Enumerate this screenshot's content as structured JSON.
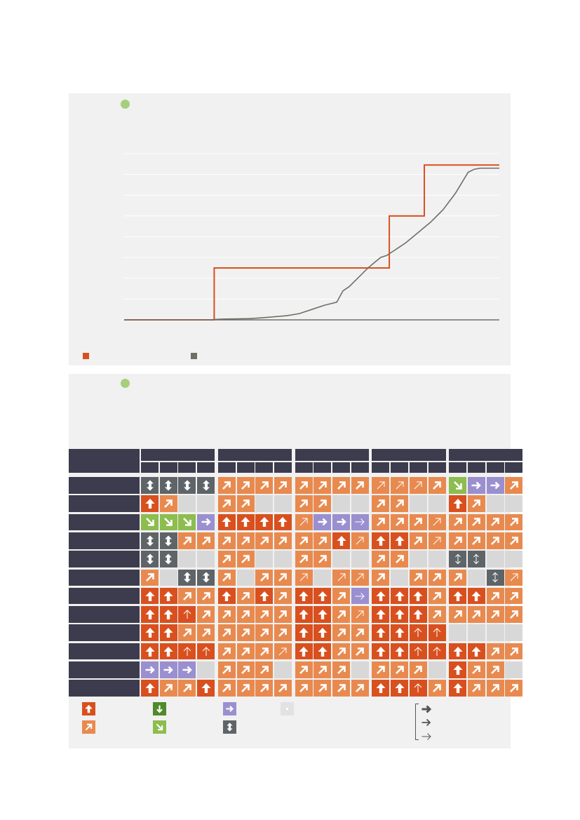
{
  "chart_data": {
    "type": "line",
    "title": "",
    "xlabel": "",
    "ylabel": "",
    "x": [
      0,
      10,
      20,
      30,
      40,
      50,
      60,
      70,
      72,
      80,
      90,
      100,
      110,
      120,
      130,
      140,
      150,
      160,
      170,
      175,
      180,
      185,
      190,
      195,
      200,
      205,
      210,
      215,
      220,
      225,
      230,
      235,
      240,
      245,
      250,
      255,
      260,
      265,
      270,
      275,
      280,
      285,
      290,
      295,
      300
    ],
    "xlim": [
      0,
      300
    ],
    "ylim": [
      0,
      8
    ],
    "gridlines_y": [
      0,
      1,
      2,
      3,
      4,
      5,
      6,
      7,
      8
    ],
    "grid": true,
    "series": [
      {
        "name": "",
        "color": "#d9501f",
        "steps": [
          {
            "x": 0,
            "y": 0
          },
          {
            "x": 72,
            "y": 0
          },
          {
            "x": 72,
            "y": 2.5
          },
          {
            "x": 212,
            "y": 2.5
          },
          {
            "x": 212,
            "y": 5
          },
          {
            "x": 240,
            "y": 5
          },
          {
            "x": 240,
            "y": 7.45
          },
          {
            "x": 300,
            "y": 7.45
          }
        ]
      },
      {
        "name": "",
        "color": "#6f6f68",
        "values": [
          0,
          0,
          0,
          0,
          0,
          0,
          0,
          0,
          0.02,
          0.04,
          0.05,
          0.06,
          0.1,
          0.15,
          0.2,
          0.3,
          0.5,
          0.7,
          0.85,
          1.4,
          1.6,
          1.9,
          2.2,
          2.5,
          2.75,
          3.0,
          3.1,
          3.3,
          3.5,
          3.7,
          3.95,
          4.2,
          4.45,
          4.7,
          5.0,
          5.3,
          5.7,
          6.1,
          6.6,
          7.1,
          7.25,
          7.3,
          7.3,
          7.3,
          7.3
        ]
      }
    ]
  },
  "trend_table": {
    "groups": [
      "",
      "",
      "",
      "",
      ""
    ],
    "quarters_per_group": 4,
    "rows": [
      {
        "label": "",
        "cells": [
          "vu_gray",
          "vu_gray",
          "vu_gray",
          "vu_gray",
          "ne",
          "ne",
          "ne",
          "ne",
          "ne",
          "ne",
          "ne",
          "ne",
          "ne_thin",
          "ne_thin",
          "ne_thin",
          "ne",
          "se_green",
          "e_purple",
          "e_purple",
          "ne"
        ]
      },
      {
        "label": "",
        "cells": [
          "up",
          "ne",
          "blank",
          "blank",
          "ne",
          "ne",
          "blank",
          "blank",
          "ne",
          "ne",
          "blank",
          "blank",
          "ne",
          "ne",
          "blank",
          "blank",
          "up",
          "ne",
          "blank",
          "blank"
        ]
      },
      {
        "label": "",
        "cells": [
          "se_green",
          "se_green",
          "se_green",
          "e_purple",
          "up",
          "up",
          "up",
          "up",
          "ne_thin",
          "e_purple",
          "e_purple",
          "e_purple_thin",
          "ne",
          "ne",
          "ne",
          "ne_thin",
          "ne",
          "ne",
          "ne",
          "ne"
        ]
      },
      {
        "label": "",
        "cells": [
          "vu_gray",
          "vu_gray",
          "ne",
          "ne",
          "ne",
          "ne",
          "ne",
          "ne",
          "ne",
          "ne",
          "up",
          "ne_thin",
          "up",
          "up",
          "ne",
          "ne_thin",
          "ne",
          "ne",
          "ne",
          "ne"
        ]
      },
      {
        "label": "",
        "cells": [
          "vu_gray",
          "vu_gray",
          "blank",
          "blank",
          "ne",
          "ne",
          "blank",
          "blank",
          "ne",
          "ne",
          "blank",
          "blank",
          "ne",
          "ne",
          "blank",
          "blank",
          "vu_gray_thin",
          "vu_gray_thin",
          "blank",
          "blank"
        ]
      },
      {
        "label": "",
        "cells": [
          "ne",
          "blank",
          "vu_gray",
          "vu_gray",
          "ne",
          "blank",
          "ne",
          "ne",
          "ne_thin",
          "blank",
          "ne_thin",
          "ne_thin",
          "ne",
          "blank",
          "ne",
          "ne",
          "ne",
          "blank",
          "vu_gray_thin",
          "ne_thin"
        ]
      },
      {
        "label": "",
        "cells": [
          "up",
          "up",
          "ne",
          "ne",
          "up",
          "ne",
          "up",
          "ne",
          "up",
          "up",
          "ne",
          "e_purple_thin",
          "up",
          "up",
          "up",
          "ne",
          "up",
          "up",
          "ne",
          "ne"
        ]
      },
      {
        "label": "",
        "cells": [
          "up",
          "up",
          "up_thin",
          "ne",
          "ne",
          "ne",
          "ne",
          "ne",
          "up",
          "up",
          "ne",
          "ne_thin",
          "up",
          "up",
          "up",
          "ne",
          "ne",
          "ne",
          "ne",
          "ne"
        ]
      },
      {
        "label": "",
        "cells": [
          "up",
          "up",
          "ne",
          "ne",
          "ne",
          "ne",
          "ne",
          "ne",
          "up",
          "up",
          "ne",
          "ne",
          "up",
          "up",
          "up_thin",
          "up_thin",
          "blank",
          "blank",
          "blank",
          "blank"
        ]
      },
      {
        "label": "",
        "cells": [
          "up",
          "up",
          "up_thin",
          "up_thin",
          "ne",
          "ne",
          "ne",
          "ne_thin",
          "up",
          "up",
          "ne",
          "ne",
          "up",
          "up",
          "up_thin",
          "up_thin",
          "up",
          "up",
          "ne",
          "ne"
        ]
      },
      {
        "label": "",
        "cells": [
          "e_purple",
          "e_purple",
          "e_purple",
          "blank",
          "ne",
          "ne",
          "ne",
          "blank",
          "ne",
          "ne",
          "ne",
          "blank",
          "ne",
          "ne",
          "ne",
          "blank",
          "up",
          "ne",
          "ne",
          "blank"
        ]
      },
      {
        "label": "",
        "cells": [
          "up",
          "ne",
          "ne",
          "up",
          "ne",
          "ne",
          "ne",
          "ne",
          "ne",
          "ne",
          "ne",
          "ne",
          "up",
          "up",
          "up_thin",
          "ne",
          "up",
          "ne",
          "ne",
          "ne"
        ]
      }
    ]
  },
  "key": {
    "items": [
      {
        "icon": "up",
        "label": ""
      },
      {
        "icon": "down_green",
        "label": ""
      },
      {
        "icon": "e_purple",
        "label": ""
      },
      {
        "icon": "blank",
        "label": ""
      },
      {
        "icon": "ne",
        "label": ""
      },
      {
        "icon": "se_green",
        "label": ""
      },
      {
        "icon": "vu_gray",
        "label": ""
      }
    ],
    "strength": [
      "",
      "",
      ""
    ]
  },
  "colors": {
    "dark_orange": "#d9501f",
    "light_orange": "#e88a4f",
    "purple": "#9a8fcf",
    "green": "#8cbd4e",
    "dark_green": "#4f8a2b",
    "gray_icon": "#5e6468",
    "empty": "#d8d8d8",
    "navy": "#3c3c4e",
    "grid_line": "#ffffff",
    "dot": "#a6cf7c"
  }
}
